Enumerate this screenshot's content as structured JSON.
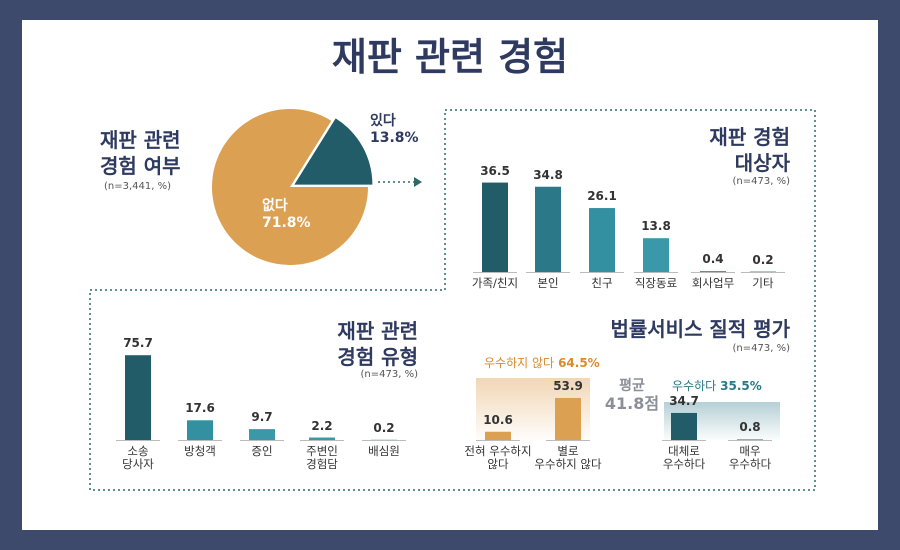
{
  "title": "재판 관련 경험",
  "chart_data": [
    {
      "type": "pie",
      "title": "재판 관련\n경험 여부",
      "subtitle": "(n=3,441, %)",
      "categories": [
        "있다",
        "없다"
      ],
      "values": [
        13.8,
        71.8
      ],
      "value_labels": [
        "13.8%",
        "71.8%"
      ],
      "colors": [
        "#215c68",
        "#dba052"
      ]
    },
    {
      "type": "bar",
      "title": "재판 경험\n대상자",
      "subtitle": "(n=473, %)",
      "categories": [
        "가족/친지",
        "본인",
        "친구",
        "직장동료",
        "회사업무",
        "기타"
      ],
      "values": [
        36.5,
        34.8,
        26.1,
        13.8,
        0.4,
        0.2
      ],
      "colors": [
        "#215c68",
        "#2b7888",
        "#3390a0",
        "#3a98a8",
        "#3a98a8",
        "#3a98a8"
      ]
    },
    {
      "type": "bar",
      "title": "재판 관련\n경험 유형",
      "subtitle": "(n=473, %)",
      "categories": [
        "소송\n당사자",
        "방청객",
        "증인",
        "주변인\n경험담",
        "배심원"
      ],
      "values": [
        75.7,
        17.6,
        9.7,
        2.2,
        0.2
      ],
      "colors": [
        "#215c68",
        "#3390a0",
        "#3a98a8",
        "#3a98a8",
        "#3a98a8"
      ]
    },
    {
      "type": "bar",
      "title": "법률서비스 질적 평가",
      "subtitle": "(n=473, %)",
      "categories": [
        "전혀 우수하지\n않다",
        "별로\n우수하지 않다",
        "대체로\n우수하다",
        "매우\n우수하다"
      ],
      "values": [
        10.6,
        53.9,
        34.7,
        0.8
      ],
      "colors": [
        "#dba052",
        "#dba052",
        "#215c68",
        "#3390a0"
      ],
      "groups": [
        {
          "label": "우수하지 않다",
          "value": 64.5,
          "value_label": "64.5%",
          "color": "#d98b2b"
        },
        {
          "label": "우수하다",
          "value": 35.5,
          "value_label": "35.5%",
          "color": "#2b7888"
        }
      ],
      "average": {
        "label": "평균",
        "value": 41.8,
        "value_label": "41.8점"
      }
    }
  ]
}
